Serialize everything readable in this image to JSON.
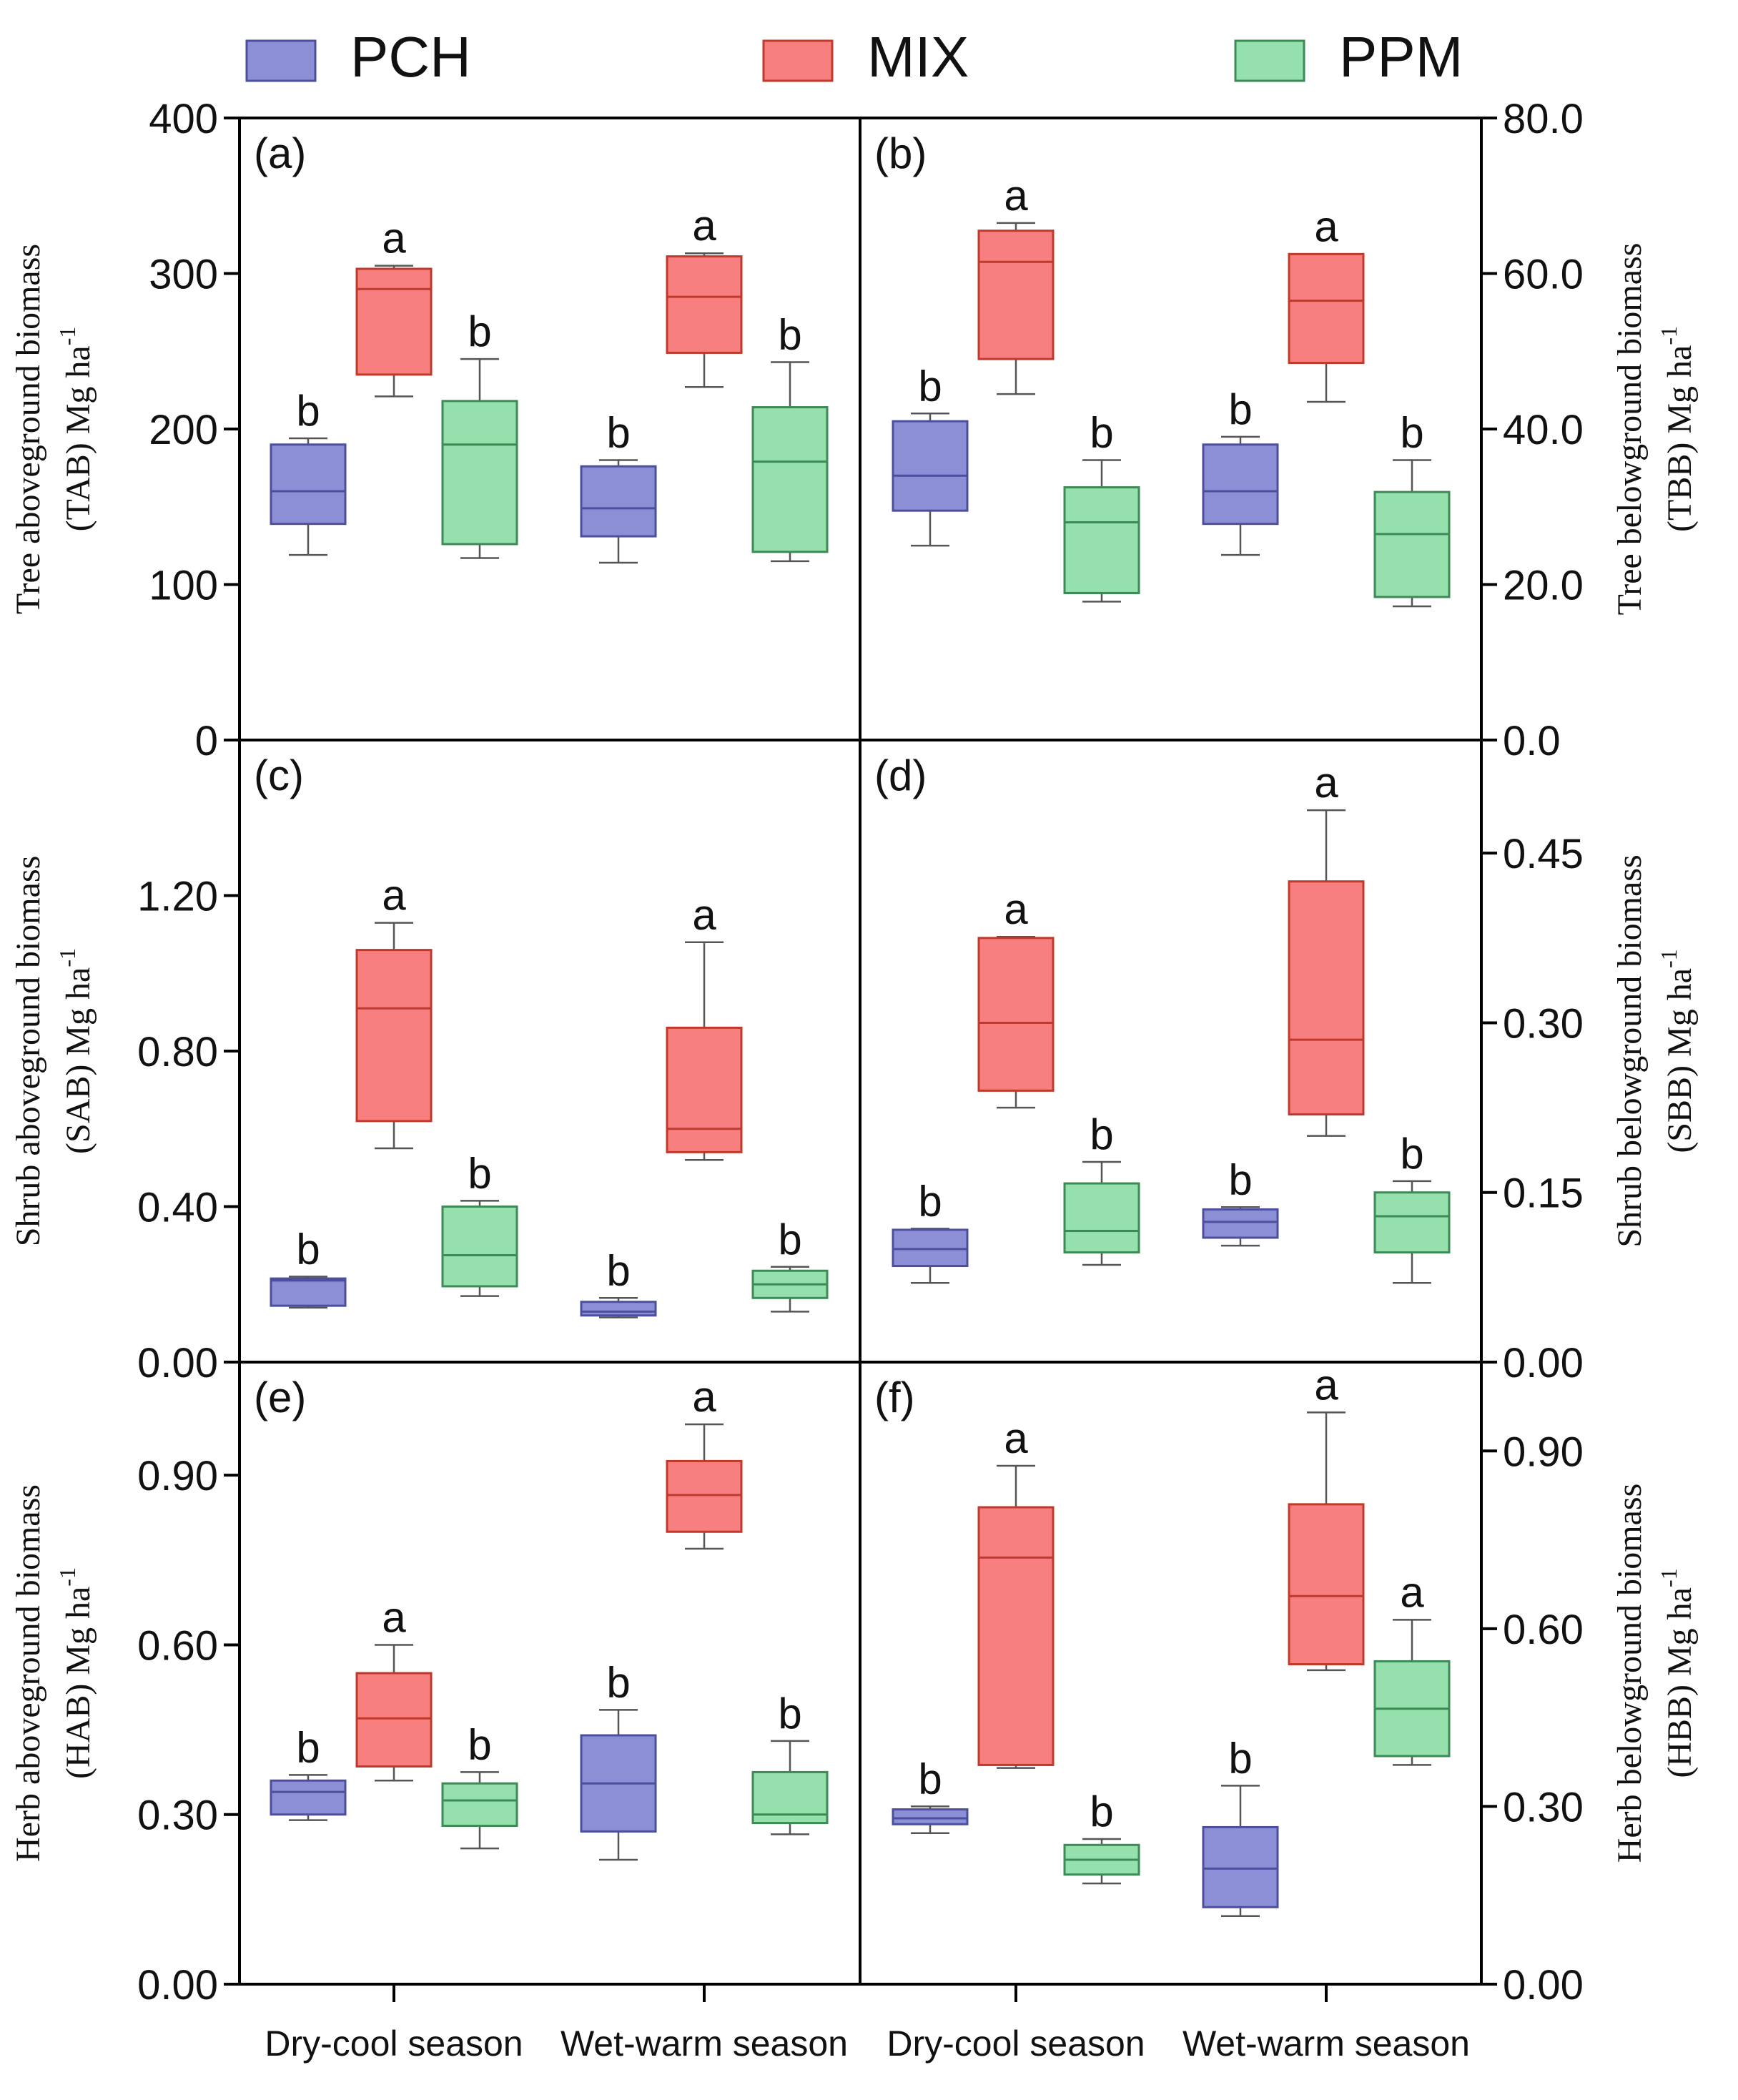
{
  "legend": [
    {
      "key": "PCH",
      "label": "PCH",
      "color": "#8c8fd6",
      "edge": "#4b4f9e"
    },
    {
      "key": "MIX",
      "label": "MIX",
      "color": "#f77f7f",
      "edge": "#c0392b"
    },
    {
      "key": "PPM",
      "label": "PPM",
      "color": "#95e0ad",
      "edge": "#3c8a55"
    }
  ],
  "x_labels": [
    "Dry-cool season",
    "Wet-warm season",
    "Dry-cool season",
    "Wet-warm season"
  ],
  "ylabels": {
    "left": [
      {
        "line1": "Tree aboveground biomass",
        "line2a": "(TAB) Mg ha",
        "sup": "-1"
      },
      {
        "line1": "Shrub aboveground biomass",
        "line2a": "(SAB) Mg ha",
        "sup": "-1"
      },
      {
        "line1": "Herb aboveground biomass",
        "line2a": "(HAB) Mg ha",
        "sup": "-1"
      }
    ],
    "right": [
      {
        "line1": "Tree belowground biomass",
        "line2a": "(TBB) Mg ha",
        "sup": "-1"
      },
      {
        "line1": "Shrub belowground biomass",
        "line2a": "(SBB) Mg ha",
        "sup": "-1"
      },
      {
        "line1": "Herb belowground biomass",
        "line2a": "(HBB) Mg ha",
        "sup": "-1"
      }
    ]
  },
  "chart_data": [
    {
      "panel": "(a)",
      "type": "box",
      "side": "left",
      "ylim": [
        0,
        400
      ],
      "ticks": [
        {
          "v": 0,
          "label": "0"
        },
        {
          "v": 100,
          "label": "100"
        },
        {
          "v": 200,
          "label": "200"
        },
        {
          "v": 300,
          "label": "300"
        },
        {
          "v": 400,
          "label": "400"
        }
      ],
      "seasons": [
        {
          "name": "Dry-cool season",
          "boxes": [
            {
              "group": "PCH",
              "min": 119,
              "q1": 139,
              "median": 160,
              "q3": 190,
              "max": 194,
              "letter": "b"
            },
            {
              "group": "MIX",
              "min": 221,
              "q1": 235,
              "median": 290,
              "q3": 303,
              "max": 305,
              "letter": "a"
            },
            {
              "group": "PPM",
              "min": 117,
              "q1": 126,
              "median": 190,
              "q3": 218,
              "max": 245,
              "letter": "b"
            }
          ]
        },
        {
          "name": "Wet-warm season",
          "boxes": [
            {
              "group": "PCH",
              "min": 114,
              "q1": 131,
              "median": 149,
              "q3": 176,
              "max": 180,
              "letter": "b"
            },
            {
              "group": "MIX",
              "min": 227,
              "q1": 249,
              "median": 285,
              "q3": 311,
              "max": 313,
              "letter": "a"
            },
            {
              "group": "PPM",
              "min": 115,
              "q1": 121,
              "median": 179,
              "q3": 214,
              "max": 243,
              "letter": "b"
            }
          ]
        }
      ]
    },
    {
      "panel": "(b)",
      "type": "box",
      "side": "right",
      "ylim": [
        0,
        80
      ],
      "ticks": [
        {
          "v": 0,
          "label": "0.0"
        },
        {
          "v": 20,
          "label": "20.0"
        },
        {
          "v": 40,
          "label": "40.0"
        },
        {
          "v": 60,
          "label": "60.0"
        },
        {
          "v": 80,
          "label": "80.0"
        }
      ],
      "seasons": [
        {
          "name": "Dry-cool season",
          "boxes": [
            {
              "group": "PCH",
              "min": 25,
              "q1": 29.5,
              "median": 34,
              "q3": 41,
              "max": 42,
              "letter": "b"
            },
            {
              "group": "MIX",
              "min": 44.5,
              "q1": 49,
              "median": 61.5,
              "q3": 65.5,
              "max": 66.5,
              "letter": "a"
            },
            {
              "group": "PPM",
              "min": 17.8,
              "q1": 18.9,
              "median": 28,
              "q3": 32.5,
              "max": 36,
              "letter": "b"
            }
          ]
        },
        {
          "name": "Wet-warm season",
          "boxes": [
            {
              "group": "PCH",
              "min": 23.8,
              "q1": 27.8,
              "median": 32,
              "q3": 38,
              "max": 39,
              "letter": "b"
            },
            {
              "group": "MIX",
              "min": 43.5,
              "q1": 48.5,
              "median": 56.5,
              "q3": 62.5,
              "max": 62.5,
              "letter": "a"
            },
            {
              "group": "PPM",
              "min": 17.2,
              "q1": 18.4,
              "median": 26.5,
              "q3": 31.9,
              "max": 36,
              "letter": "b"
            }
          ]
        }
      ]
    },
    {
      "panel": "(c)",
      "type": "box",
      "side": "left",
      "ylim": [
        0,
        1.6
      ],
      "ticks": [
        {
          "v": 0,
          "label": "0.00"
        },
        {
          "v": 0.4,
          "label": "0.40"
        },
        {
          "v": 0.8,
          "label": "0.80"
        },
        {
          "v": 1.2,
          "label": "1.20"
        }
      ],
      "seasons": [
        {
          "name": "Dry-cool season",
          "boxes": [
            {
              "group": "PCH",
              "min": 0.14,
              "q1": 0.145,
              "median": 0.21,
              "q3": 0.215,
              "max": 0.22,
              "letter": "b"
            },
            {
              "group": "MIX",
              "min": 0.55,
              "q1": 0.62,
              "median": 0.91,
              "q3": 1.06,
              "max": 1.13,
              "letter": "a"
            },
            {
              "group": "PPM",
              "min": 0.17,
              "q1": 0.195,
              "median": 0.275,
              "q3": 0.4,
              "max": 0.415,
              "letter": "b"
            }
          ]
        },
        {
          "name": "Wet-warm season",
          "boxes": [
            {
              "group": "PCH",
              "min": 0.115,
              "q1": 0.12,
              "median": 0.13,
              "q3": 0.155,
              "max": 0.165,
              "letter": "b"
            },
            {
              "group": "MIX",
              "min": 0.52,
              "q1": 0.54,
              "median": 0.6,
              "q3": 0.86,
              "max": 1.08,
              "letter": "a"
            },
            {
              "group": "PPM",
              "min": 0.13,
              "q1": 0.165,
              "median": 0.2,
              "q3": 0.235,
              "max": 0.245,
              "letter": "b"
            }
          ]
        }
      ]
    },
    {
      "panel": "(d)",
      "type": "box",
      "side": "right",
      "ylim": [
        0,
        0.55
      ],
      "ticks": [
        {
          "v": 0,
          "label": "0.00"
        },
        {
          "v": 0.15,
          "label": "0.15"
        },
        {
          "v": 0.3,
          "label": "0.30"
        },
        {
          "v": 0.45,
          "label": "0.45"
        }
      ],
      "seasons": [
        {
          "name": "Dry-cool season",
          "boxes": [
            {
              "group": "PCH",
              "min": 0.07,
              "q1": 0.085,
              "median": 0.1,
              "q3": 0.117,
              "max": 0.118,
              "letter": "b"
            },
            {
              "group": "MIX",
              "min": 0.225,
              "q1": 0.24,
              "median": 0.3,
              "q3": 0.375,
              "max": 0.376,
              "letter": "a"
            },
            {
              "group": "PPM",
              "min": 0.086,
              "q1": 0.097,
              "median": 0.116,
              "q3": 0.158,
              "max": 0.177,
              "letter": "b"
            }
          ]
        },
        {
          "name": "Wet-warm season",
          "boxes": [
            {
              "group": "PCH",
              "min": 0.103,
              "q1": 0.11,
              "median": 0.124,
              "q3": 0.135,
              "max": 0.137,
              "letter": "b"
            },
            {
              "group": "MIX",
              "min": 0.2,
              "q1": 0.219,
              "median": 0.285,
              "q3": 0.425,
              "max": 0.488,
              "letter": "a"
            },
            {
              "group": "PPM",
              "min": 0.07,
              "q1": 0.097,
              "median": 0.129,
              "q3": 0.15,
              "max": 0.16,
              "letter": "b"
            }
          ]
        }
      ]
    },
    {
      "panel": "(e)",
      "type": "box",
      "side": "left",
      "ylim": [
        0,
        1.1
      ],
      "ticks": [
        {
          "v": 0,
          "label": "0.00"
        },
        {
          "v": 0.3,
          "label": "0.30"
        },
        {
          "v": 0.6,
          "label": "0.60"
        },
        {
          "v": 0.9,
          "label": "0.90"
        }
      ],
      "seasons": [
        {
          "name": "Dry-cool season",
          "boxes": [
            {
              "group": "PCH",
              "min": 0.29,
              "q1": 0.3,
              "median": 0.34,
              "q3": 0.36,
              "max": 0.37,
              "letter": "b"
            },
            {
              "group": "MIX",
              "min": 0.36,
              "q1": 0.385,
              "median": 0.47,
              "q3": 0.55,
              "max": 0.6,
              "letter": "a"
            },
            {
              "group": "PPM",
              "min": 0.24,
              "q1": 0.28,
              "median": 0.325,
              "q3": 0.355,
              "max": 0.375,
              "letter": "b"
            }
          ]
        },
        {
          "name": "Wet-warm season",
          "boxes": [
            {
              "group": "PCH",
              "min": 0.22,
              "q1": 0.27,
              "median": 0.355,
              "q3": 0.44,
              "max": 0.485,
              "letter": "b"
            },
            {
              "group": "MIX",
              "min": 0.77,
              "q1": 0.8,
              "median": 0.865,
              "q3": 0.925,
              "max": 0.99,
              "letter": "a"
            },
            {
              "group": "PPM",
              "min": 0.265,
              "q1": 0.285,
              "median": 0.3,
              "q3": 0.375,
              "max": 0.43,
              "letter": "b"
            }
          ]
        }
      ]
    },
    {
      "panel": "(f)",
      "type": "box",
      "side": "right",
      "ylim": [
        0,
        1.05
      ],
      "ticks": [
        {
          "v": 0,
          "label": "0.00"
        },
        {
          "v": 0.3,
          "label": "0.30"
        },
        {
          "v": 0.6,
          "label": "0.60"
        },
        {
          "v": 0.9,
          "label": "0.90"
        }
      ],
      "seasons": [
        {
          "name": "Dry-cool season",
          "boxes": [
            {
              "group": "PCH",
              "min": 0.255,
              "q1": 0.27,
              "median": 0.28,
              "q3": 0.295,
              "max": 0.3,
              "letter": "b"
            },
            {
              "group": "MIX",
              "min": 0.365,
              "q1": 0.37,
              "median": 0.72,
              "q3": 0.805,
              "max": 0.875,
              "letter": "a"
            },
            {
              "group": "PPM",
              "min": 0.17,
              "q1": 0.185,
              "median": 0.21,
              "q3": 0.235,
              "max": 0.245,
              "letter": "b"
            }
          ]
        },
        {
          "name": "Wet-warm season",
          "boxes": [
            {
              "group": "PCH",
              "min": 0.115,
              "q1": 0.13,
              "median": 0.195,
              "q3": 0.265,
              "max": 0.335,
              "letter": "b"
            },
            {
              "group": "MIX",
              "min": 0.53,
              "q1": 0.54,
              "median": 0.655,
              "q3": 0.81,
              "max": 0.965,
              "letter": "a"
            },
            {
              "group": "PPM",
              "min": 0.37,
              "q1": 0.385,
              "median": 0.465,
              "q3": 0.545,
              "max": 0.615,
              "letter": "a"
            }
          ]
        }
      ]
    }
  ]
}
